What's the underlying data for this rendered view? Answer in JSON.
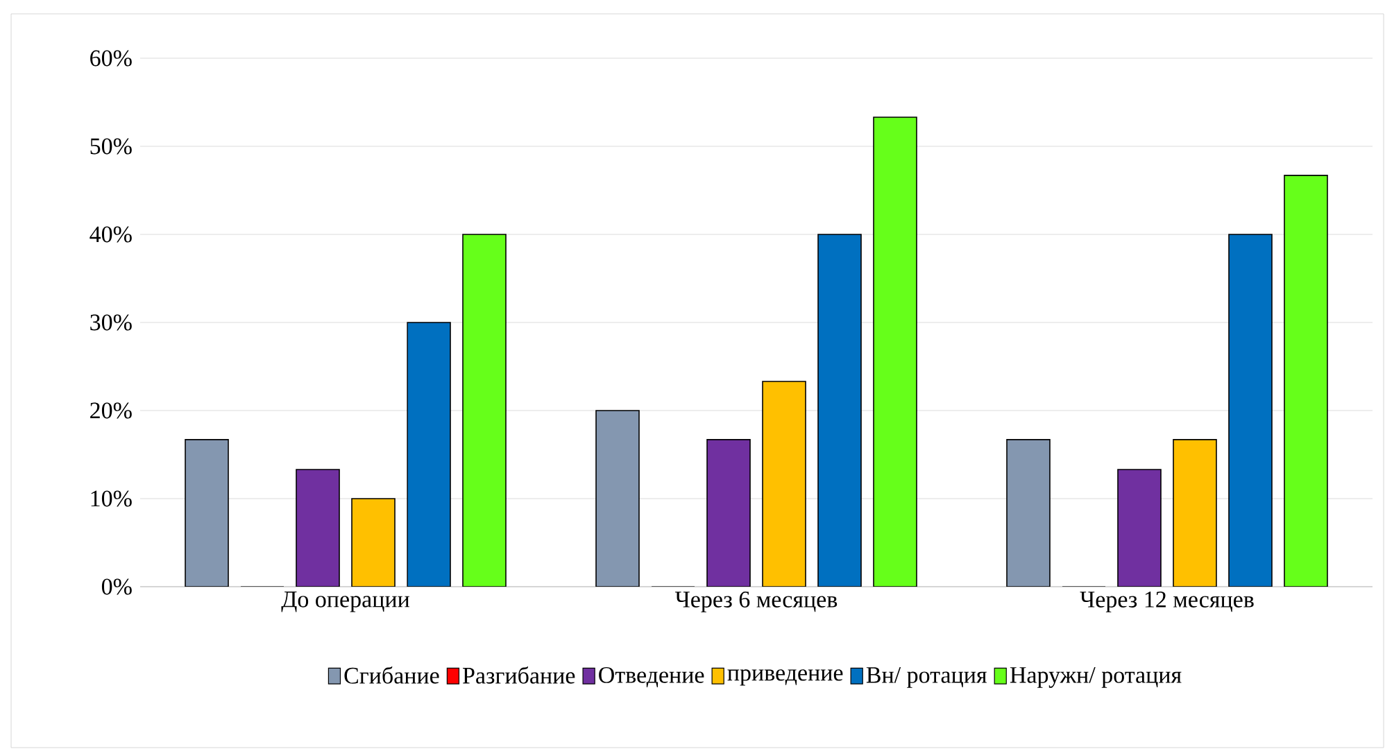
{
  "chart_data": {
    "type": "bar",
    "categories": [
      "До операции",
      "Через 6 месяцев",
      "Через 12 месяцев"
    ],
    "series": [
      {
        "name": "Сгибание",
        "color": "#8497b0",
        "values": [
          16.7,
          20,
          16.7
        ]
      },
      {
        "name": "Разгибание",
        "color": "#ff0000",
        "values": [
          0,
          0,
          0
        ]
      },
      {
        "name": "Отведение",
        "color": "#7030a0",
        "values": [
          13.3,
          16.7,
          13.3
        ]
      },
      {
        "name": "приведение",
        "color": "#ffc000",
        "values": [
          10,
          23.3,
          16.7
        ]
      },
      {
        "name": "Вн/ ротация",
        "color": "#0070c0",
        "values": [
          30,
          40,
          40
        ]
      },
      {
        "name": "Наружн/ ротация",
        "color": "#66ff1a",
        "values": [
          40,
          53.3,
          46.7
        ]
      }
    ],
    "ylim": [
      0,
      60
    ],
    "yticks": [
      {
        "value": 0,
        "label": "0%"
      },
      {
        "value": 10,
        "label": "10%"
      },
      {
        "value": 20,
        "label": "20%"
      },
      {
        "value": 30,
        "label": "30%"
      },
      {
        "value": 40,
        "label": "40%"
      },
      {
        "value": 50,
        "label": "50%"
      },
      {
        "value": 60,
        "label": "60%"
      }
    ],
    "grid": "y",
    "legend": "bottom"
  }
}
